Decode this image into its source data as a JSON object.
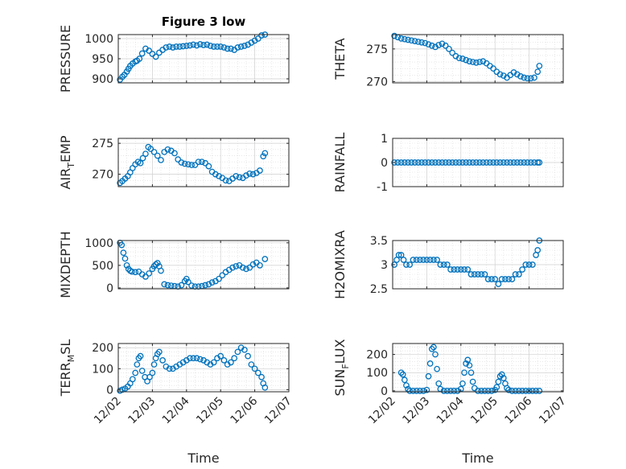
{
  "window": {
    "title": "Figure 3 low"
  },
  "chart_data": [
    {
      "id": "pressure",
      "type": "scatter",
      "title": "Figure 3 low",
      "ylabel": "PRESSURE",
      "xlabel": "",
      "xlim": [
        0,
        5
      ],
      "ylim": [
        890,
        1010
      ],
      "yticks": [
        900,
        950,
        1000
      ],
      "xticks": [
        "12/02",
        "12/03",
        "12/04",
        "12/05",
        "12/06",
        "12/07"
      ],
      "show_xticklabels": false,
      "grid": true,
      "minor_grid": true,
      "series": [
        {
          "color": "#0072BD",
          "marker": "circle-open",
          "x": [
            0.05,
            0.12,
            0.18,
            0.25,
            0.3,
            0.35,
            0.42,
            0.5,
            0.55,
            0.62,
            0.7,
            0.8,
            0.9,
            1.0,
            1.1,
            1.2,
            1.3,
            1.4,
            1.5,
            1.6,
            1.7,
            1.8,
            1.9,
            2.0,
            2.1,
            2.2,
            2.3,
            2.4,
            2.5,
            2.6,
            2.7,
            2.8,
            2.9,
            3.0,
            3.1,
            3.2,
            3.3,
            3.4,
            3.5,
            3.6,
            3.7,
            3.8,
            3.9,
            4.0,
            4.1,
            4.2,
            4.3
          ],
          "y": [
            898,
            905,
            910,
            918,
            925,
            932,
            938,
            943,
            945,
            950,
            963,
            975,
            970,
            962,
            955,
            965,
            972,
            978,
            980,
            978,
            980,
            980,
            981,
            982,
            983,
            985,
            983,
            986,
            984,
            985,
            982,
            980,
            980,
            980,
            978,
            975,
            975,
            972,
            978,
            980,
            982,
            985,
            990,
            995,
            1000,
            1008,
            1010
          ]
        }
      ]
    },
    {
      "id": "theta",
      "type": "scatter",
      "ylabel": "THETA",
      "xlabel": "",
      "xlim": [
        0,
        5
      ],
      "ylim": [
        269.8,
        277.2
      ],
      "yticks": [
        270,
        275
      ],
      "xticks": [
        "12/02",
        "12/03",
        "12/04",
        "12/05",
        "12/06",
        "12/07"
      ],
      "show_xticklabels": false,
      "grid": true,
      "minor_grid": true,
      "series": [
        {
          "color": "#0072BD",
          "marker": "circle-open",
          "x": [
            0.05,
            0.15,
            0.25,
            0.35,
            0.45,
            0.55,
            0.65,
            0.75,
            0.85,
            0.95,
            1.05,
            1.15,
            1.25,
            1.35,
            1.45,
            1.55,
            1.65,
            1.75,
            1.85,
            1.95,
            2.05,
            2.15,
            2.25,
            2.35,
            2.45,
            2.55,
            2.65,
            2.75,
            2.85,
            2.95,
            3.05,
            3.15,
            3.25,
            3.35,
            3.45,
            3.55,
            3.65,
            3.75,
            3.85,
            3.95,
            4.05,
            4.15,
            4.25,
            4.3
          ],
          "y": [
            277.0,
            276.8,
            276.6,
            276.5,
            276.4,
            276.3,
            276.2,
            276.1,
            276.0,
            275.9,
            275.7,
            275.5,
            275.3,
            275.6,
            275.8,
            275.5,
            275.0,
            274.4,
            273.9,
            273.6,
            273.5,
            273.3,
            273.1,
            273.0,
            272.9,
            273.0,
            273.1,
            272.8,
            272.4,
            272.0,
            271.5,
            271.1,
            270.9,
            270.6,
            271.0,
            271.4,
            271.1,
            270.8,
            270.6,
            270.5,
            270.5,
            270.6,
            271.5,
            272.4
          ]
        }
      ]
    },
    {
      "id": "air_temp",
      "type": "scatter",
      "ylabel": "AIR_TEMP",
      "ylabel_main": "AIR",
      "ylabel_sub": "T",
      "ylabel_rest": "EMP",
      "xlabel": "",
      "xlim": [
        0,
        5
      ],
      "ylim": [
        268,
        275.8
      ],
      "yticks": [
        270,
        275
      ],
      "xticks": [
        "12/02",
        "12/03",
        "12/04",
        "12/05",
        "12/06",
        "12/07"
      ],
      "show_xticklabels": false,
      "grid": true,
      "minor_grid": true,
      "series": [
        {
          "color": "#0072BD",
          "marker": "circle-open",
          "x": [
            0.05,
            0.12,
            0.2,
            0.28,
            0.35,
            0.42,
            0.5,
            0.58,
            0.65,
            0.72,
            0.8,
            0.88,
            0.95,
            1.05,
            1.15,
            1.25,
            1.35,
            1.45,
            1.55,
            1.65,
            1.75,
            1.85,
            1.95,
            2.05,
            2.15,
            2.25,
            2.35,
            2.45,
            2.55,
            2.65,
            2.75,
            2.85,
            2.95,
            3.05,
            3.15,
            3.25,
            3.35,
            3.45,
            3.55,
            3.65,
            3.75,
            3.85,
            3.95,
            4.05,
            4.15,
            4.25,
            4.3
          ],
          "y": [
            268.6,
            268.9,
            269.3,
            269.7,
            270.3,
            271.0,
            271.6,
            272.0,
            271.8,
            272.6,
            273.3,
            274.4,
            274.1,
            273.6,
            273.0,
            272.3,
            273.6,
            274.0,
            273.8,
            273.4,
            272.4,
            271.9,
            271.7,
            271.6,
            271.5,
            271.5,
            272.0,
            272.0,
            271.8,
            271.3,
            270.4,
            270.0,
            269.7,
            269.4,
            269.0,
            268.9,
            269.3,
            269.7,
            269.5,
            269.4,
            269.8,
            270.1,
            270.0,
            270.2,
            270.6,
            272.9,
            273.4
          ]
        }
      ]
    },
    {
      "id": "rainfall",
      "type": "scatter",
      "ylabel": "RAINFALL",
      "xlabel": "",
      "xlim": [
        0,
        5
      ],
      "ylim": [
        -1,
        1
      ],
      "yticks": [
        -1,
        0,
        1
      ],
      "xticks": [
        "12/02",
        "12/03",
        "12/04",
        "12/05",
        "12/06",
        "12/07"
      ],
      "show_xticklabels": false,
      "grid": true,
      "minor_grid": true,
      "series": [
        {
          "color": "#0072BD",
          "marker": "circle-open",
          "x": [
            0.05,
            0.15,
            0.25,
            0.35,
            0.45,
            0.55,
            0.65,
            0.75,
            0.85,
            0.95,
            1.05,
            1.15,
            1.25,
            1.35,
            1.45,
            1.55,
            1.65,
            1.75,
            1.85,
            1.95,
            2.05,
            2.15,
            2.25,
            2.35,
            2.45,
            2.55,
            2.65,
            2.75,
            2.85,
            2.95,
            3.05,
            3.15,
            3.25,
            3.35,
            3.45,
            3.55,
            3.65,
            3.75,
            3.85,
            3.95,
            4.05,
            4.15,
            4.25,
            4.3
          ],
          "y": [
            0,
            0,
            0,
            0,
            0,
            0,
            0,
            0,
            0,
            0,
            0,
            0,
            0,
            0,
            0,
            0,
            0,
            0,
            0,
            0,
            0,
            0,
            0,
            0,
            0,
            0,
            0,
            0,
            0,
            0,
            0,
            0,
            0,
            0,
            0,
            0,
            0,
            0,
            0,
            0,
            0,
            0,
            0,
            0
          ]
        }
      ]
    },
    {
      "id": "mixdepth",
      "type": "scatter",
      "ylabel": "MIXDEPTH",
      "xlabel": "",
      "xlim": [
        0,
        5
      ],
      "ylim": [
        -20,
        1050
      ],
      "yticks": [
        0,
        500,
        1000
      ],
      "xticks": [
        "12/02",
        "12/03",
        "12/04",
        "12/05",
        "12/06",
        "12/07"
      ],
      "show_xticklabels": false,
      "grid": true,
      "minor_grid": true,
      "series": [
        {
          "color": "#0072BD",
          "marker": "circle-open",
          "x": [
            0.05,
            0.1,
            0.15,
            0.2,
            0.25,
            0.3,
            0.35,
            0.4,
            0.5,
            0.6,
            0.7,
            0.8,
            0.9,
            1.0,
            1.05,
            1.1,
            1.15,
            1.2,
            1.25,
            1.35,
            1.45,
            1.55,
            1.65,
            1.75,
            1.85,
            1.95,
            2.0,
            2.05,
            2.15,
            2.25,
            2.35,
            2.45,
            2.55,
            2.65,
            2.75,
            2.85,
            2.95,
            3.05,
            3.15,
            3.25,
            3.35,
            3.45,
            3.55,
            3.65,
            3.75,
            3.85,
            3.95,
            4.05,
            4.15,
            4.3
          ],
          "y": [
            1000,
            950,
            780,
            650,
            500,
            420,
            380,
            360,
            350,
            360,
            300,
            250,
            320,
            420,
            480,
            520,
            550,
            480,
            380,
            80,
            60,
            50,
            40,
            30,
            60,
            150,
            200,
            130,
            50,
            30,
            30,
            40,
            60,
            80,
            120,
            150,
            200,
            280,
            350,
            400,
            450,
            480,
            500,
            450,
            420,
            450,
            520,
            560,
            500,
            640
          ]
        }
      ]
    },
    {
      "id": "h2omixra",
      "type": "scatter",
      "ylabel": "H2OMIXRA",
      "xlabel": "",
      "xlim": [
        0,
        5
      ],
      "ylim": [
        2.5,
        3.5
      ],
      "yticks": [
        2.5,
        3,
        3.5
      ],
      "xticks": [
        "12/02",
        "12/03",
        "12/04",
        "12/05",
        "12/06",
        "12/07"
      ],
      "show_xticklabels": false,
      "grid": true,
      "minor_grid": true,
      "series": [
        {
          "color": "#0072BD",
          "marker": "circle-open",
          "x": [
            0.05,
            0.12,
            0.18,
            0.25,
            0.32,
            0.4,
            0.5,
            0.6,
            0.7,
            0.8,
            0.9,
            1.0,
            1.1,
            1.2,
            1.3,
            1.4,
            1.5,
            1.6,
            1.7,
            1.8,
            1.9,
            2.0,
            2.1,
            2.2,
            2.3,
            2.4,
            2.5,
            2.6,
            2.7,
            2.8,
            2.9,
            3.0,
            3.1,
            3.2,
            3.3,
            3.4,
            3.5,
            3.6,
            3.7,
            3.8,
            3.9,
            4.0,
            4.1,
            4.2,
            4.25,
            4.3
          ],
          "y": [
            3.0,
            3.1,
            3.2,
            3.2,
            3.1,
            3.0,
            3.0,
            3.1,
            3.1,
            3.1,
            3.1,
            3.1,
            3.1,
            3.1,
            3.1,
            3.0,
            3.0,
            3.0,
            2.9,
            2.9,
            2.9,
            2.9,
            2.9,
            2.9,
            2.8,
            2.8,
            2.8,
            2.8,
            2.8,
            2.7,
            2.7,
            2.7,
            2.6,
            2.7,
            2.7,
            2.7,
            2.7,
            2.8,
            2.8,
            2.9,
            3.0,
            3.0,
            3.0,
            3.2,
            3.3,
            3.5
          ]
        }
      ]
    },
    {
      "id": "terr_msl",
      "type": "scatter",
      "ylabel": "TERR_MSL",
      "ylabel_main": "TERR",
      "ylabel_sub": "M",
      "ylabel_rest": "SL",
      "xlabel": "Time",
      "xlim": [
        0,
        5
      ],
      "ylim": [
        -10,
        220
      ],
      "yticks": [
        0,
        100,
        200
      ],
      "xticks": [
        "12/02",
        "12/03",
        "12/04",
        "12/05",
        "12/06",
        "12/07"
      ],
      "show_xticklabels": true,
      "grid": true,
      "minor_grid": true,
      "series": [
        {
          "color": "#0072BD",
          "marker": "circle-open",
          "x": [
            0.05,
            0.12,
            0.2,
            0.28,
            0.35,
            0.42,
            0.5,
            0.55,
            0.6,
            0.65,
            0.7,
            0.78,
            0.85,
            0.92,
            1.0,
            1.05,
            1.1,
            1.15,
            1.2,
            1.3,
            1.4,
            1.5,
            1.6,
            1.7,
            1.8,
            1.9,
            2.0,
            2.1,
            2.2,
            2.3,
            2.4,
            2.5,
            2.6,
            2.7,
            2.8,
            2.9,
            3.0,
            3.1,
            3.2,
            3.3,
            3.4,
            3.5,
            3.6,
            3.7,
            3.8,
            3.9,
            4.0,
            4.1,
            4.2,
            4.25,
            4.3
          ],
          "y": [
            -5,
            0,
            5,
            15,
            30,
            50,
            80,
            120,
            150,
            160,
            90,
            60,
            40,
            60,
            80,
            120,
            150,
            170,
            180,
            140,
            110,
            100,
            100,
            110,
            120,
            130,
            140,
            150,
            150,
            150,
            145,
            140,
            130,
            120,
            130,
            150,
            160,
            140,
            120,
            130,
            150,
            180,
            200,
            190,
            160,
            120,
            100,
            80,
            60,
            30,
            10
          ]
        }
      ]
    },
    {
      "id": "sun_flux",
      "type": "scatter",
      "ylabel": "SUN_FLUX",
      "ylabel_main": "SUN",
      "ylabel_sub": "F",
      "ylabel_rest": "LUX",
      "xlabel": "Time",
      "xlim": [
        0,
        5
      ],
      "ylim": [
        -5,
        260
      ],
      "yticks": [
        0,
        100,
        200
      ],
      "xticks": [
        "12/02",
        "12/03",
        "12/04",
        "12/05",
        "12/06",
        "12/07"
      ],
      "show_xticklabels": true,
      "grid": true,
      "minor_grid": true,
      "series": [
        {
          "color": "#0072BD",
          "marker": "circle-open",
          "x": [
            0.25,
            0.3,
            0.35,
            0.4,
            0.45,
            0.5,
            0.6,
            0.7,
            0.8,
            0.9,
            1.0,
            1.05,
            1.1,
            1.15,
            1.2,
            1.25,
            1.3,
            1.35,
            1.4,
            1.5,
            1.6,
            1.7,
            1.8,
            1.9,
            2.0,
            2.05,
            2.1,
            2.15,
            2.2,
            2.25,
            2.3,
            2.35,
            2.4,
            2.5,
            2.6,
            2.7,
            2.8,
            2.9,
            3.0,
            3.05,
            3.1,
            3.15,
            3.2,
            3.25,
            3.3,
            3.35,
            3.4,
            3.5,
            3.6,
            3.7,
            3.8,
            3.9,
            4.0,
            4.1,
            4.2,
            4.3
          ],
          "y": [
            100,
            90,
            60,
            30,
            10,
            0,
            0,
            0,
            0,
            0,
            5,
            80,
            150,
            230,
            240,
            200,
            120,
            40,
            10,
            0,
            0,
            0,
            0,
            0,
            10,
            40,
            100,
            150,
            170,
            140,
            100,
            50,
            15,
            0,
            0,
            0,
            0,
            0,
            5,
            20,
            50,
            80,
            90,
            70,
            40,
            15,
            5,
            0,
            0,
            0,
            0,
            0,
            0,
            0,
            0,
            0
          ]
        }
      ]
    }
  ]
}
